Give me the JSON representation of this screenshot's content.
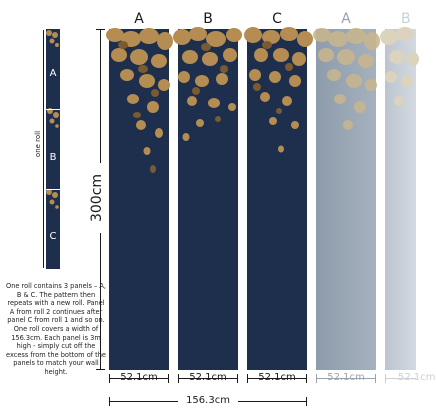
{
  "panels": [
    {
      "letter": "A",
      "width_label": "52.1cm",
      "style": "print"
    },
    {
      "letter": "B",
      "width_label": "52.1cm",
      "style": "print"
    },
    {
      "letter": "C",
      "width_label": "52.1cm",
      "style": "print"
    },
    {
      "letter": "A",
      "width_label": "52.1cm",
      "style": "faded"
    },
    {
      "letter": "B",
      "width_label": "52.1cm",
      "style": "faded-light"
    }
  ],
  "height_label": "300cm",
  "total_width_label": "156.3cm",
  "roll": {
    "label": "one roll",
    "segments": [
      "A",
      "B",
      "C"
    ]
  },
  "description": "One roll contains 3 panels – A, B & C. The pattern then repeats with a new roll. Panel A from roll 2 continues after panel C from roll 1 and so on. One roll covers a width of 156.3cm. Each panel is 3m high - simply cut off the excess from the bottom of the panels to match your wall height.",
  "colors": {
    "navy": "#1e2f4e",
    "leaf_gold": "#b58d52",
    "leaf_dark": "#7a5a31",
    "faded_panel": "#8f9dac",
    "faded_light": "#c9d0d8",
    "text_dark": "#1a1a1a",
    "text_faded": "#9aa3ad"
  }
}
